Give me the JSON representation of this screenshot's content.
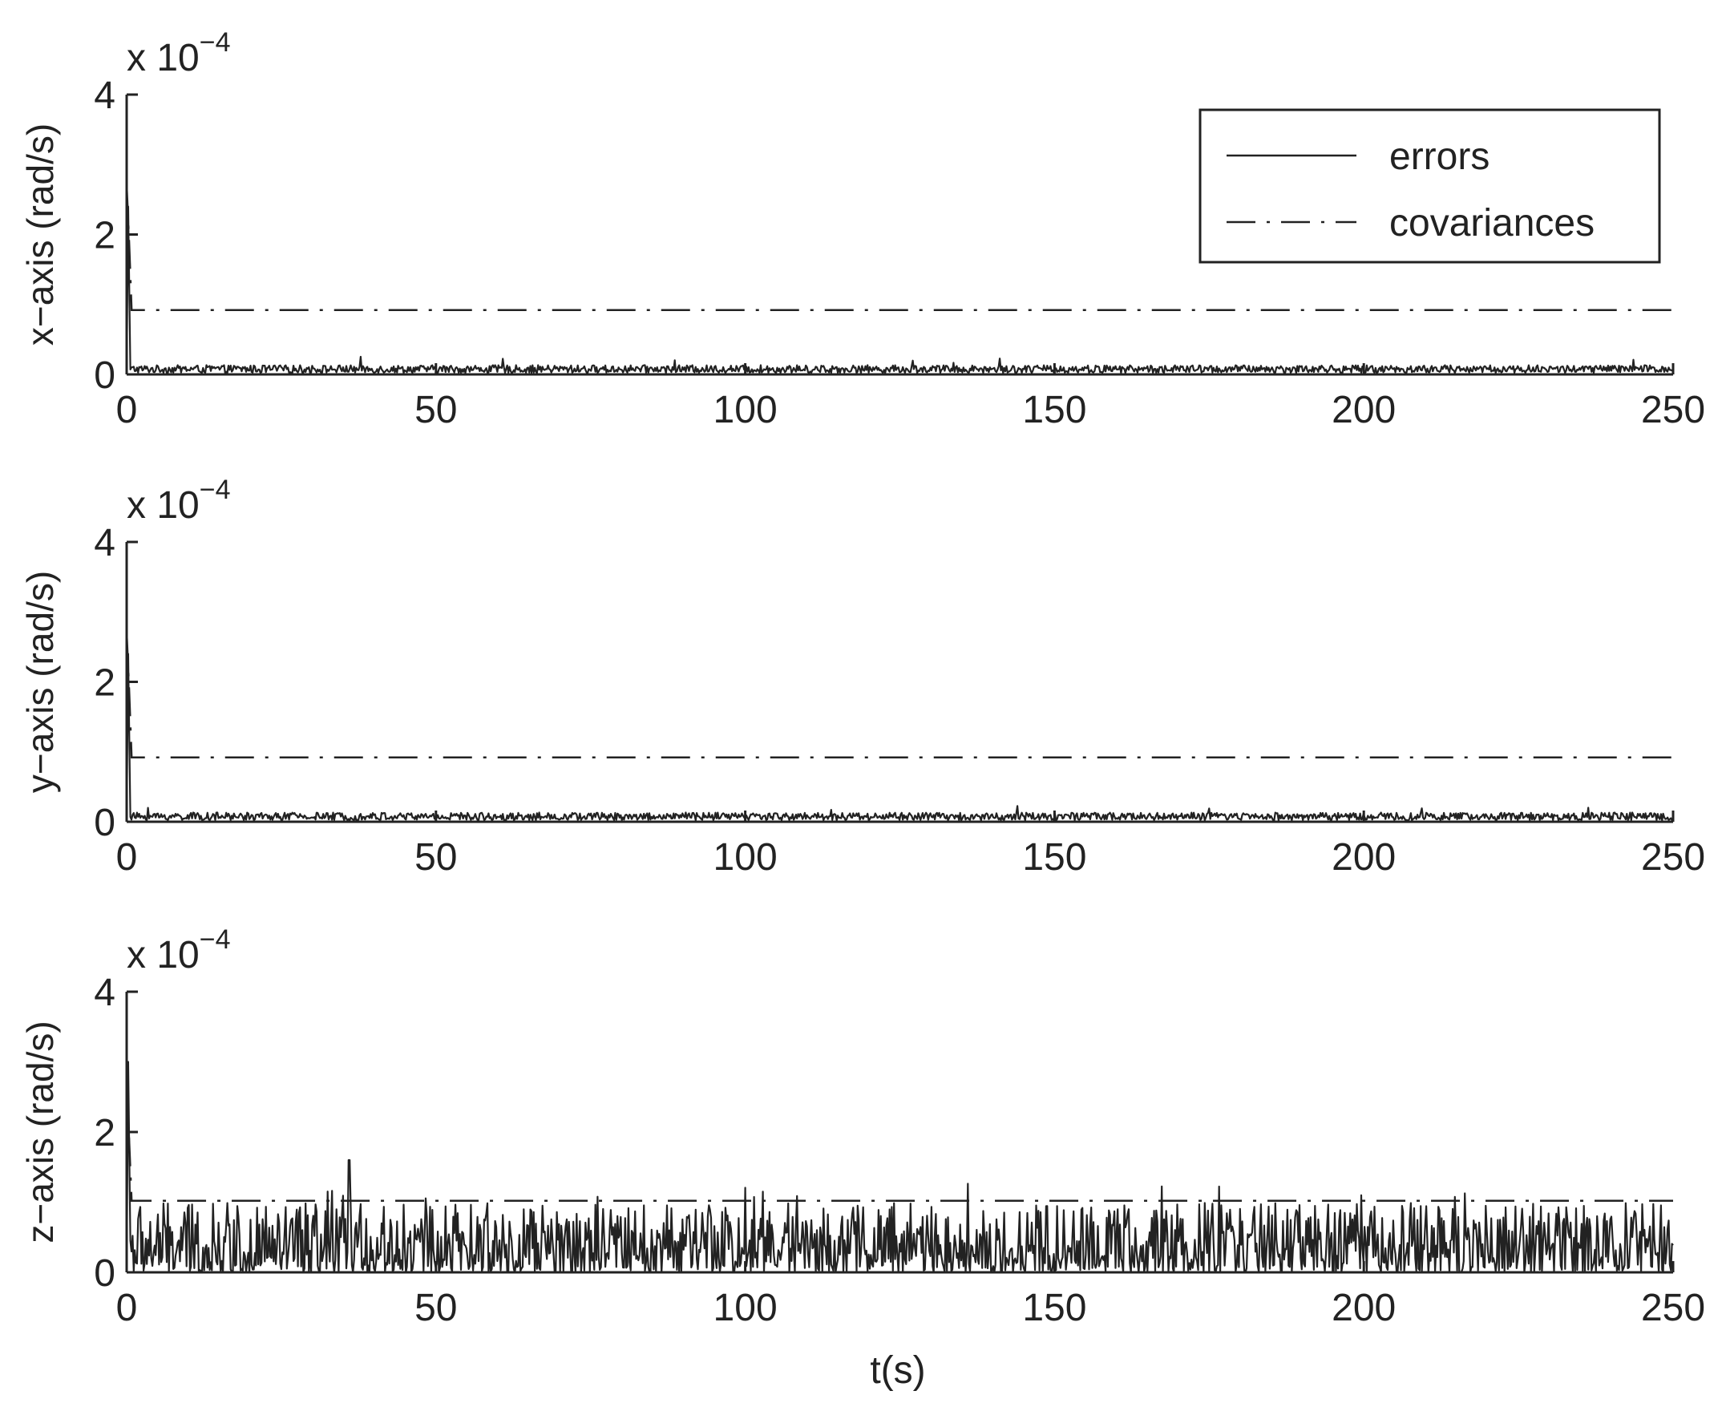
{
  "colors": {
    "line": "#222222",
    "background": "#ffffff"
  },
  "legend": {
    "placement": "top-right",
    "entries": [
      {
        "label": "errors",
        "style": "solid"
      },
      {
        "label": "covariances",
        "style": "dash-dot"
      }
    ]
  },
  "xlabel": "t(s)",
  "chart_data": [
    {
      "type": "line",
      "ylabel": "x−axis (rad/s)",
      "exponent_base": "x 10",
      "exponent_power": "−4",
      "xlim": [
        0,
        250
      ],
      "ylim": [
        0,
        4
      ],
      "xticks": [
        "0",
        "50",
        "100",
        "150",
        "200",
        "250"
      ],
      "yticks": [
        "0",
        "2",
        "4"
      ],
      "show_legend": true,
      "series": [
        {
          "name": "errors",
          "style": "solid",
          "noise_level": 0.07,
          "initial_peak": 2.4
        },
        {
          "name": "covariances",
          "style": "dash-dot",
          "steady_value": 0.92,
          "initial_value": 2.7
        }
      ]
    },
    {
      "type": "line",
      "ylabel": "y−axis (rad/s)",
      "exponent_base": "x 10",
      "exponent_power": "−4",
      "xlim": [
        0,
        250
      ],
      "ylim": [
        0,
        4
      ],
      "xticks": [
        "0",
        "50",
        "100",
        "150",
        "200",
        "250"
      ],
      "yticks": [
        "0",
        "2",
        "4"
      ],
      "show_legend": false,
      "series": [
        {
          "name": "errors",
          "style": "solid",
          "noise_level": 0.07,
          "initial_peak": 2.4
        },
        {
          "name": "covariances",
          "style": "dash-dot",
          "steady_value": 0.92,
          "initial_value": 2.7
        }
      ]
    },
    {
      "type": "line",
      "ylabel": "z−axis (rad/s)",
      "exponent_base": "x 10",
      "exponent_power": "−4",
      "xlim": [
        0,
        250
      ],
      "ylim": [
        0,
        4
      ],
      "xticks": [
        "0",
        "50",
        "100",
        "150",
        "200",
        "250"
      ],
      "yticks": [
        "0",
        "2",
        "4"
      ],
      "show_legend": false,
      "series": [
        {
          "name": "errors",
          "style": "solid",
          "noise_level": 0.45,
          "initial_peak": 3.0,
          "max_spike": 1.6
        },
        {
          "name": "covariances",
          "style": "dash-dot",
          "steady_value": 1.02,
          "initial_value": 2.7
        }
      ]
    }
  ]
}
